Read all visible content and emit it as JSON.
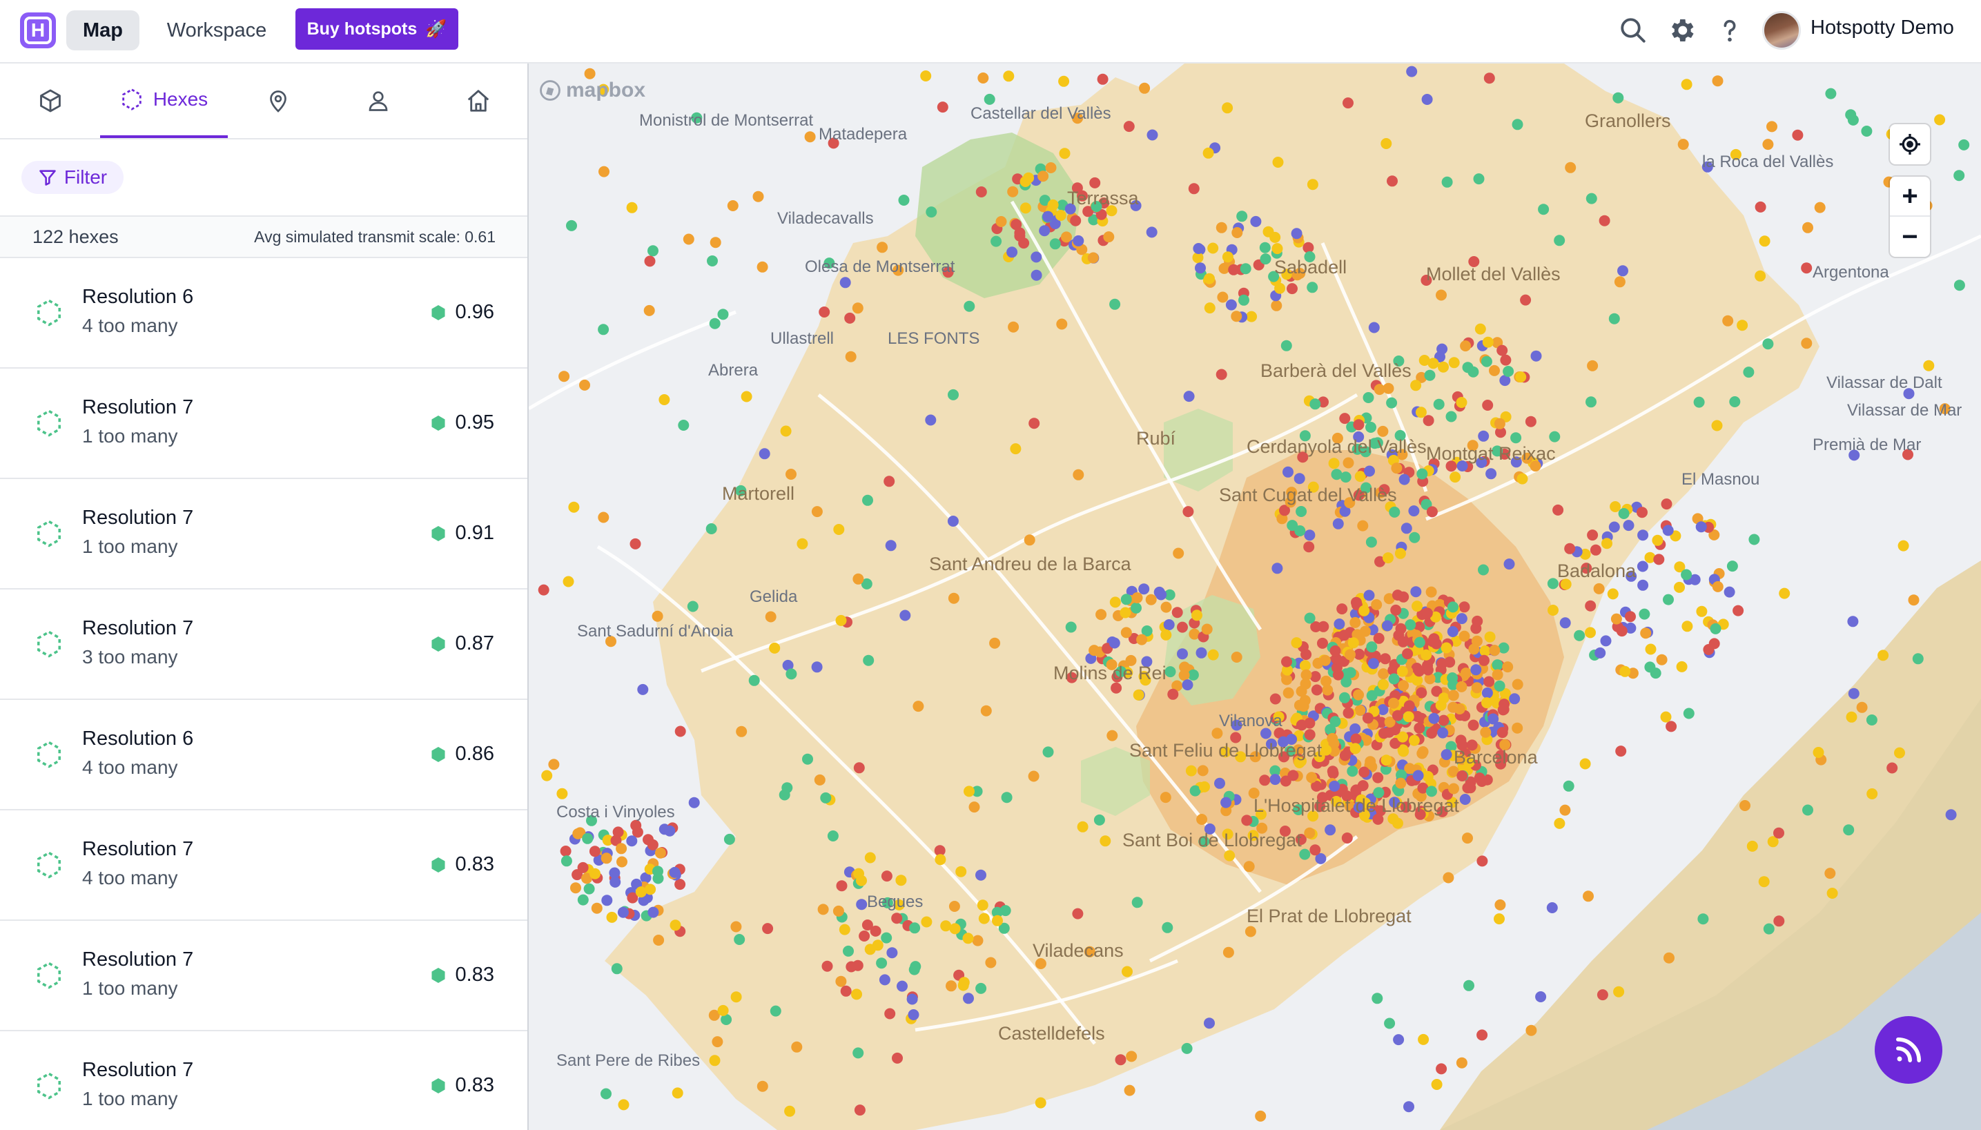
{
  "header": {
    "logo_letter": "H",
    "nav_map": "Map",
    "nav_workspace": "Workspace",
    "buy_label": "Buy hotspots",
    "buy_emoji": "🚀",
    "user_name": "Hotspotty Demo",
    "icons": [
      "search-icon",
      "gear-icon",
      "help-icon"
    ]
  },
  "sidebar": {
    "tabs": [
      {
        "icon": "cube-icon",
        "label": ""
      },
      {
        "icon": "hex-dashed-icon",
        "label": "Hexes",
        "active": true
      },
      {
        "icon": "location-pin-icon",
        "label": ""
      },
      {
        "icon": "user-icon",
        "label": ""
      },
      {
        "icon": "home-icon",
        "label": ""
      }
    ],
    "filter_label": "Filter",
    "summary_count": "122 hexes",
    "summary_avg": "Avg simulated transmit scale: 0.61",
    "hexes": [
      {
        "title": "Resolution 6",
        "sub": "4 too many",
        "score": "0.96"
      },
      {
        "title": "Resolution 7",
        "sub": "1 too many",
        "score": "0.95"
      },
      {
        "title": "Resolution 7",
        "sub": "1 too many",
        "score": "0.91"
      },
      {
        "title": "Resolution 7",
        "sub": "3 too many",
        "score": "0.87"
      },
      {
        "title": "Resolution 6",
        "sub": "4 too many",
        "score": "0.86"
      },
      {
        "title": "Resolution 7",
        "sub": "4 too many",
        "score": "0.83"
      },
      {
        "title": "Resolution 7",
        "sub": "1 too many",
        "score": "0.83"
      },
      {
        "title": "Resolution 7",
        "sub": "1 too many",
        "score": "0.83"
      }
    ]
  },
  "map": {
    "attribution": "mapbox",
    "zoom_in": "+",
    "zoom_out": "−",
    "colors": {
      "red": "#d9534f",
      "orange": "#f0a030",
      "yellow": "#f5c518",
      "green": "#4cc38a",
      "purple": "#6b6bd6"
    },
    "labels": [
      "Monistrol de Montserrat",
      "Castellar del Vallès",
      "Matadepera",
      "Granollers",
      "la Roca del Vallès",
      "Terrassa",
      "Viladecavalls",
      "Olesa de Montserrat",
      "Sabadell",
      "Mollet del Vallès",
      "Argentona",
      "Ullastrell",
      "LES FONTS",
      "Abrera",
      "Barberà del Vallès",
      "Vilassar de Dalt",
      "Vilassar de Mar",
      "Premià de Mar",
      "Rubí",
      "Cerdanyola del Vallès",
      "Montgat Reixac",
      "El Masnou",
      "Martorell",
      "Sant Cugat del Vallès",
      "Badalona",
      "Sant Andreu de la Barca",
      "Gelida",
      "Sant Sadurní d'Anoia",
      "Molins de Rei",
      "Sant Feliu de Llobregat",
      "L'Hospitalet de Llobregat",
      "Sant Boi de Llobregat",
      "Begues",
      "El Prat de Llobregat",
      "Viladecans",
      "Castelldefels",
      "Sant Pere de Ribes",
      "Costa i Vinyoles",
      "Vilanova",
      "Barcelona"
    ]
  }
}
